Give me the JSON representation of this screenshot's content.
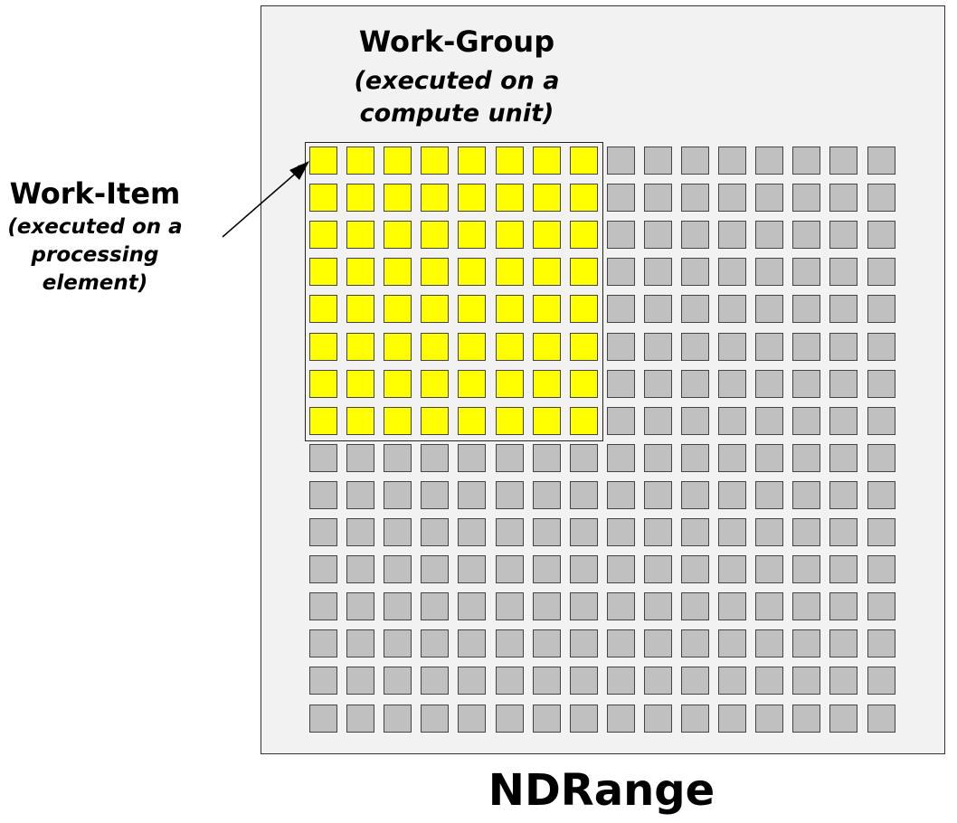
{
  "work_group": {
    "title": "Work-Group",
    "subtitle_line1": "(executed on a",
    "subtitle_line2": "compute unit)"
  },
  "work_item": {
    "title": "Work-Item",
    "subtitle_line1": "(executed on a",
    "subtitle_line2": "processing",
    "subtitle_line3": "element)"
  },
  "ndrange": {
    "title": "NDRange"
  },
  "grid": {
    "rows": 16,
    "cols": 16,
    "work_group_rows": 8,
    "work_group_cols": 8
  },
  "colors": {
    "work_group_cell": "#ffff00",
    "other_cell": "#c0c0c0",
    "background": "#f2f2f2"
  }
}
